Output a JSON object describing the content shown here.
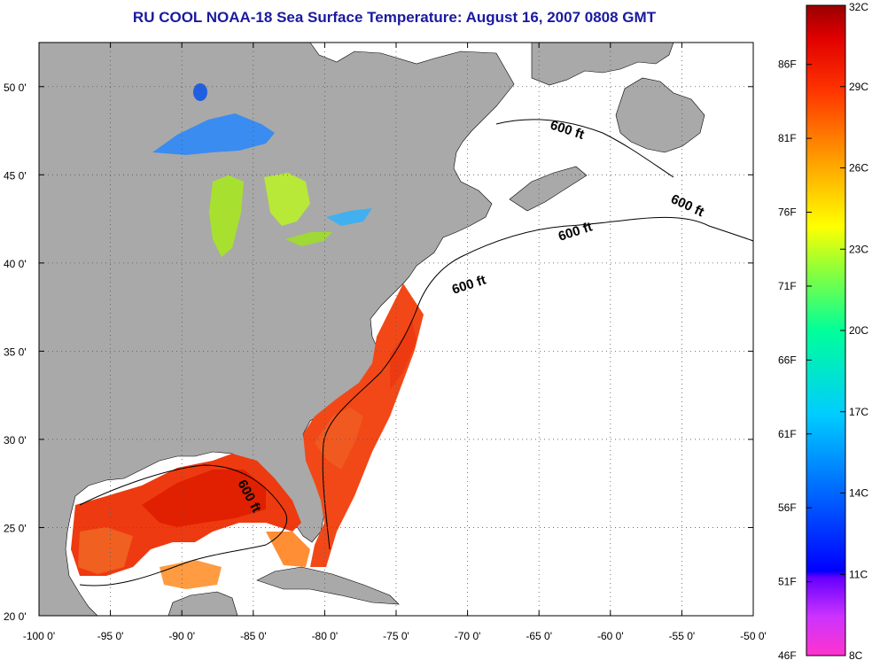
{
  "title": "RU COOL  NOAA-18  Sea Surface Temperature:  August 16, 2007 0808 GMT",
  "colors": {
    "land": "#a9a9a9",
    "ocean": "#ffffff",
    "frame": "#000000",
    "title": "#1a1aa0"
  },
  "map": {
    "lon_range": [
      -100,
      -50
    ],
    "lat_range": [
      20,
      52.5
    ],
    "lon_ticks": [
      "-100 0'",
      "-95 0'",
      "-90 0'",
      "-85 0'",
      "-80 0'",
      "-75 0'",
      "-70 0'",
      "-65 0'",
      "-60 0'",
      "-55 0'",
      "-50 0'"
    ],
    "lat_ticks": [
      "20 0'",
      "25 0'",
      "30 0'",
      "35 0'",
      "40 0'",
      "45 0'",
      "50 0'"
    ],
    "grid": "dotted",
    "contour_label": "600 ft"
  },
  "colorbar": {
    "celsius": [
      "32C",
      "29C",
      "26C",
      "23C",
      "20C",
      "17C",
      "14C",
      "11C",
      "8C"
    ],
    "fahrenheit": [
      "86F",
      "81F",
      "76F",
      "71F",
      "66F",
      "61F",
      "56F",
      "51F",
      "46F"
    ],
    "range_c": [
      8,
      32
    ],
    "range_f": [
      46,
      90
    ]
  }
}
